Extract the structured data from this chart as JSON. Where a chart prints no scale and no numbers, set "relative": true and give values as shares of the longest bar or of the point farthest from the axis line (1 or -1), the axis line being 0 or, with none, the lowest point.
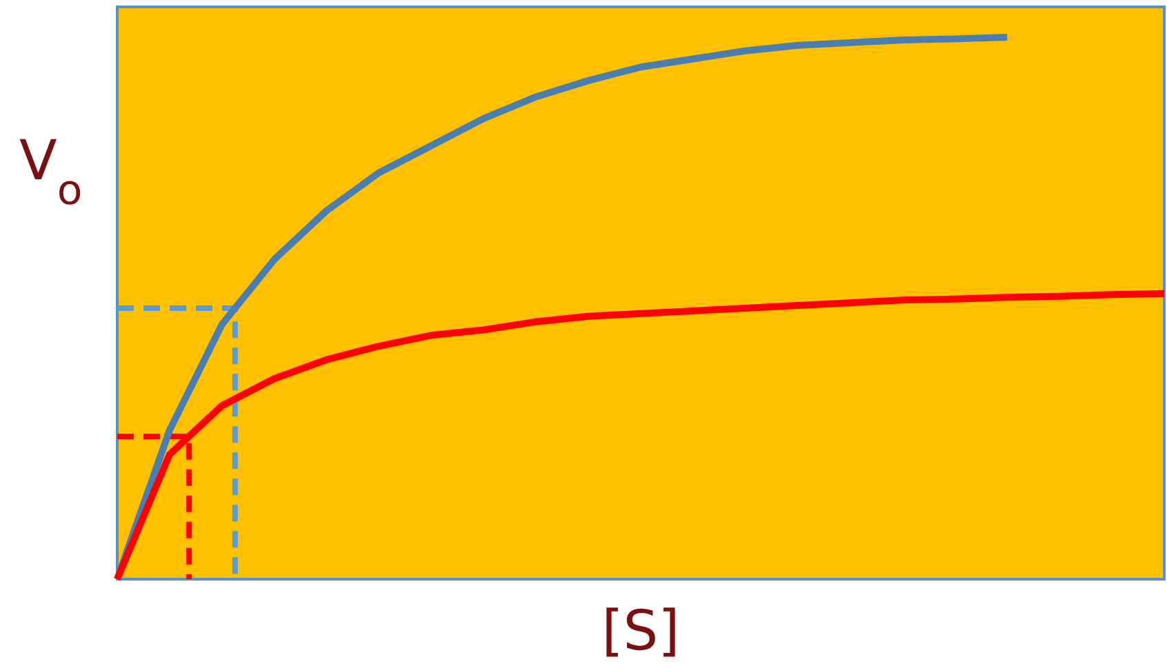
{
  "chart_data": {
    "type": "line",
    "relative": true,
    "xlabel": "[S]",
    "ylabel": "V$_{o}$",
    "categories": [
      null,
      null,
      null,
      null,
      null,
      null,
      null,
      null,
      null,
      null,
      null,
      null,
      null,
      null,
      null,
      null,
      null,
      null,
      null,
      null,
      null
    ],
    "series": [
      {
        "color": "#4a7eb0",
        "values": [
          0,
          0.275,
          0.47,
          0.59,
          0.68,
          0.75,
          0.8,
          0.85,
          0.89,
          0.92,
          0.945,
          0.96,
          0.975,
          0.985,
          0.99,
          0.995,
          0.997,
          1,
          null,
          null,
          null
        ],
        "line_style": "solid"
      },
      {
        "color": "#ff0000",
        "values": [
          0,
          0.23,
          0.32,
          0.37,
          0.405,
          0.43,
          0.45,
          0.46,
          0.475,
          0.485,
          0.49,
          0.495,
          0.5,
          0.505,
          0.51,
          0.515,
          0.517,
          0.52,
          0.522,
          0.525,
          0.527
        ],
        "line_style": "solid"
      }
    ]
  }
}
